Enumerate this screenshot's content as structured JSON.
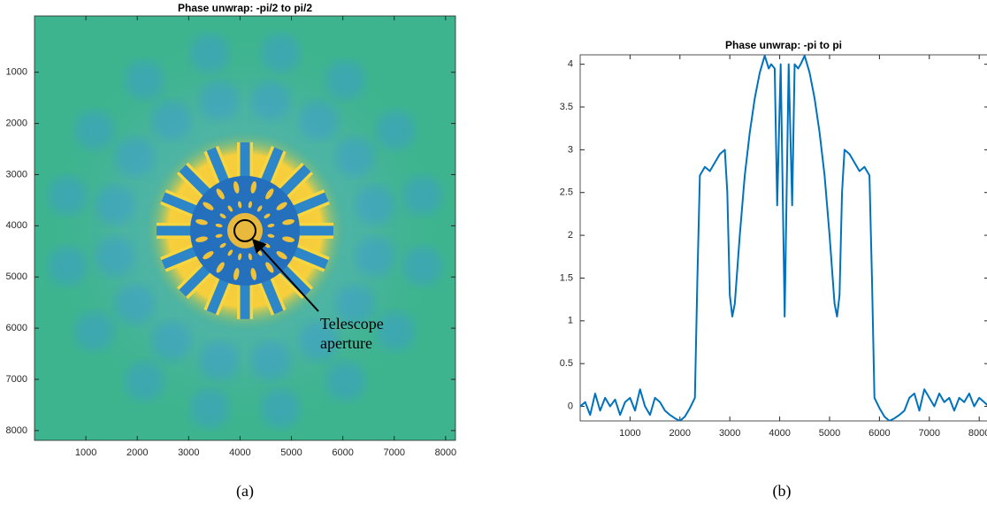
{
  "chart_data": [
    {
      "type": "image",
      "title": "Phase unwrap: -pi/2 to pi/2",
      "caption": "(a)",
      "annotation": [
        "Telescope",
        "aperture"
      ],
      "xlim": [
        0,
        8192
      ],
      "ylim": [
        8192,
        -100
      ],
      "xticks": [
        1000,
        2000,
        3000,
        4000,
        5000,
        6000,
        7000,
        8000
      ],
      "yticks": [
        1000,
        2000,
        3000,
        4000,
        5000,
        6000,
        7000,
        8000
      ]
    },
    {
      "type": "line",
      "title": "Phase unwrap: -pi to pi",
      "caption": "(b)",
      "color": "#0072bd",
      "x": [
        0,
        100,
        200,
        300,
        400,
        500,
        600,
        700,
        800,
        900,
        1000,
        1100,
        1200,
        1300,
        1400,
        1500,
        1600,
        1700,
        1800,
        1900,
        2000,
        2100,
        2200,
        2300,
        2350,
        2400,
        2500,
        2600,
        2700,
        2800,
        2900,
        2950,
        3000,
        3050,
        3100,
        3200,
        3300,
        3400,
        3500,
        3600,
        3700,
        3780,
        3830,
        3900,
        3950,
        4020,
        4100,
        4180,
        4250,
        4300,
        4370,
        4420,
        4500,
        4600,
        4700,
        4800,
        4900,
        5000,
        5100,
        5150,
        5200,
        5250,
        5300,
        5400,
        5500,
        5600,
        5700,
        5800,
        5850,
        5900,
        6000,
        6100,
        6200,
        6300,
        6400,
        6500,
        6600,
        6700,
        6800,
        6900,
        7000,
        7100,
        7200,
        7300,
        7400,
        7500,
        7600,
        7700,
        7800,
        7900,
        8000,
        8100,
        8192
      ],
      "values": [
        0.0,
        0.05,
        -0.1,
        0.15,
        -0.05,
        0.1,
        0.0,
        0.08,
        -0.1,
        0.05,
        0.1,
        -0.05,
        0.2,
        0.0,
        -0.1,
        0.1,
        0.05,
        -0.05,
        -0.1,
        -0.14,
        -0.17,
        -0.12,
        -0.02,
        0.1,
        1.5,
        2.7,
        2.8,
        2.75,
        2.85,
        2.95,
        3.0,
        2.5,
        1.3,
        1.05,
        1.2,
        2.0,
        2.7,
        3.2,
        3.6,
        3.9,
        4.1,
        3.95,
        4.0,
        3.95,
        2.35,
        4.0,
        1.05,
        4.0,
        2.35,
        4.0,
        3.95,
        4.0,
        4.1,
        3.9,
        3.6,
        3.2,
        2.7,
        2.0,
        1.2,
        1.05,
        1.3,
        2.5,
        3.0,
        2.95,
        2.85,
        2.75,
        2.8,
        2.7,
        1.5,
        0.1,
        -0.02,
        -0.12,
        -0.17,
        -0.14,
        -0.1,
        -0.05,
        0.1,
        0.15,
        -0.05,
        0.2,
        0.1,
        0.0,
        0.15,
        0.05,
        0.1,
        -0.05,
        0.1,
        0.05,
        0.15,
        0.0,
        0.1,
        0.05,
        0.0
      ],
      "xlim": [
        0,
        8192
      ],
      "ylim": [
        -0.17,
        4.11
      ],
      "xticks": [
        1000,
        2000,
        3000,
        4000,
        5000,
        6000,
        7000,
        8000
      ],
      "yticks": [
        0,
        0.5,
        1,
        1.5,
        2,
        2.5,
        3,
        3.5,
        4
      ]
    }
  ]
}
